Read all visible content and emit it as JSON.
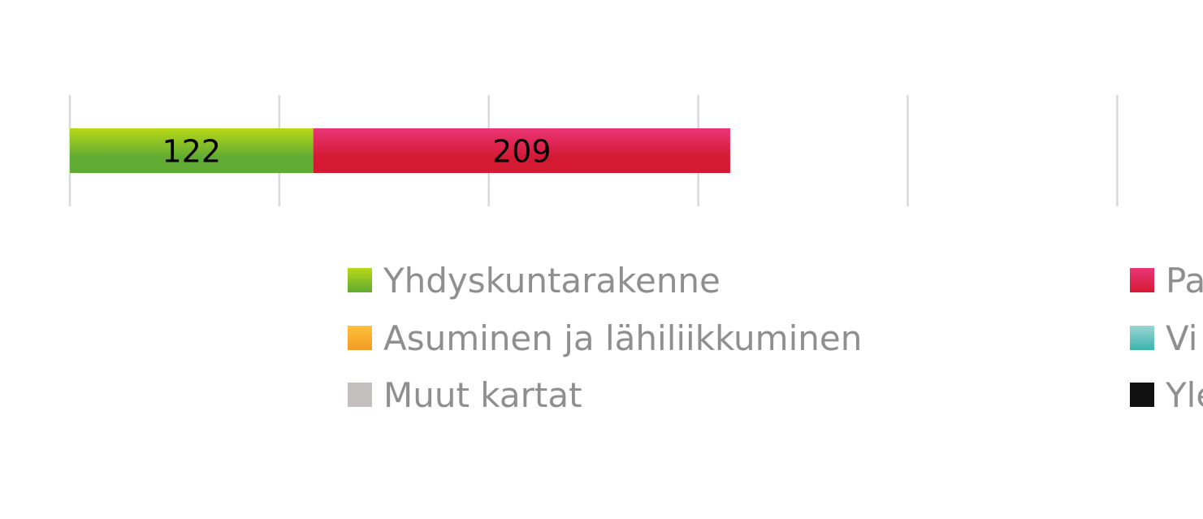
{
  "chart_data": {
    "type": "bar",
    "orientation": "horizontal",
    "stacked": true,
    "grid": true,
    "legend_position": "bottom",
    "series": [
      {
        "name": "Yhdyskuntarakenne",
        "values": [
          122
        ],
        "color_top": "#b8d817",
        "color_bottom": "#5fab33",
        "label": "122"
      },
      {
        "name": "Pa",
        "values": [
          209
        ],
        "color_top": "#ea3576",
        "color_bottom": "#d41a33",
        "label": "209"
      }
    ],
    "legend": [
      {
        "name": "Yhdyskuntarakenne",
        "color_top": "#b8d817",
        "color_bottom": "#5fab33",
        "col": 0,
        "row": 0
      },
      {
        "name": "Asuminen ja lähiliikkuminen",
        "color_top": "#ffc13a",
        "color_bottom": "#f39a25",
        "col": 0,
        "row": 1
      },
      {
        "name": "Muut kartat",
        "color_top": "#c3bfbf",
        "color_bottom": "#c3bfbf",
        "col": 0,
        "row": 2
      },
      {
        "name": "Pa",
        "color_top": "#ea3576",
        "color_bottom": "#d41a33",
        "col": 1,
        "row": 0
      },
      {
        "name": "Vi",
        "color_top": "#9ad6d2",
        "color_bottom": "#3bb3ad",
        "col": 1,
        "row": 1
      },
      {
        "name": "Yle",
        "color_top": "#111111",
        "color_bottom": "#111111",
        "col": 1,
        "row": 2
      }
    ]
  }
}
